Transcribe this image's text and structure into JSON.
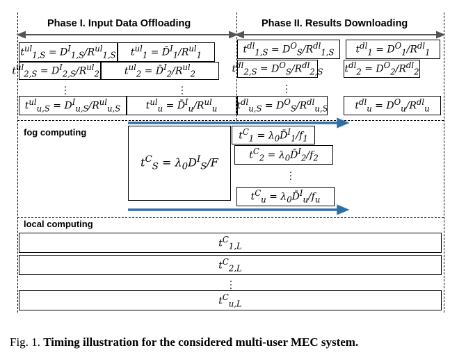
{
  "phase1_label": "Phase I. Input Data Offloading",
  "phase2_label": "Phase II. Results Downloading",
  "fog_label": "fog computing",
  "local_label": "local computing",
  "upload_s": [
    "t^ul_1,S = D^I_1,S / R^ul_1,S",
    "t^ul_2,S = D^I_2,S / R^ul_2,S",
    "t^ul_u,S = D^I_u,S / R^ul_u,S"
  ],
  "upload": [
    "t^ul_1 = D̄^I_1 / R^ul_1",
    "t^ul_2 = D̄^I_2 / R^ul_2",
    "t^ul_u = D̄^I_u / R^ul_u"
  ],
  "download_s": [
    "t^dl_1,S = D^O_S / R^dl_1,S",
    "t^dl_2,S = D^O_S / R^dl_2,S",
    "t^dl_u,S = D^O_S / R^dl_u,S"
  ],
  "download": [
    "t^dl_1 = D^O_1 / R^dl_1",
    "t^dl_2 = D^O_2 / R^dl_2",
    "t^dl_u = D^O_u / R^dl_u"
  ],
  "fog_shared": "t^C_S = λ0 D^I_S / F",
  "fog_users": [
    "t^C_1 = λ0 D̄^I_1 / f1",
    "t^C_2 = λ0 D̄^I_2 / f2",
    "t^C_u = λ0 D̄^I_u / fu"
  ],
  "local": [
    "t^C_1,L",
    "t^C_2,L",
    "t^C_u,L"
  ],
  "caption_prefix": "Fig. 1.",
  "caption_text": "Timing illustration for the considered multi-user MEC system.",
  "colors": {
    "arrow_blue": "#2f6fa7",
    "line": "#000000"
  }
}
